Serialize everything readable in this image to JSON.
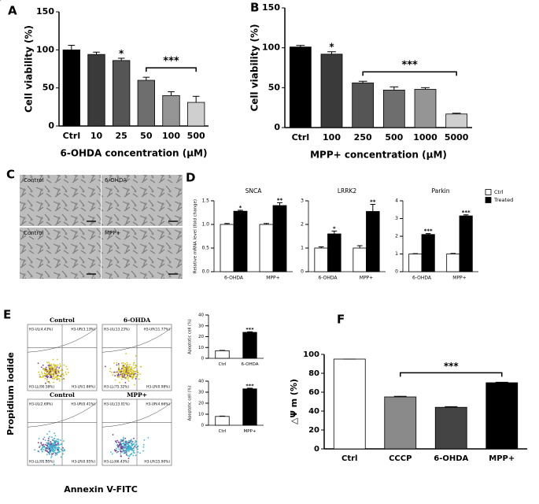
{
  "panel_labels": [
    "A",
    "B",
    "C",
    "D",
    "E",
    "F"
  ],
  "chart_data": [
    {
      "type": "bar",
      "categories": [
        "Ctrl",
        "10",
        "25",
        "50",
        "100",
        "500"
      ],
      "values": [
        100,
        94,
        86,
        60,
        40,
        31
      ],
      "errors": [
        6,
        3,
        3,
        4,
        5,
        8
      ],
      "colors": [
        "#000000",
        "#3a3a3a",
        "#555555",
        "#6e6e6e",
        "#959595",
        "#cfcfcf"
      ],
      "sig": [
        null,
        null,
        "*",
        null,
        null,
        null
      ],
      "bracket": {
        "text": "***",
        "from": "50",
        "to": "500"
      },
      "xlabel": "6-OHDA concentration (μM)",
      "ylabel": "Cell viability (%)",
      "ylim": [
        0,
        150
      ],
      "yticks": [
        0,
        50,
        100,
        150
      ]
    },
    {
      "type": "bar",
      "categories": [
        "Ctrl",
        "100",
        "250",
        "500",
        "1000",
        "5000"
      ],
      "values": [
        101,
        92,
        56,
        47,
        48,
        17
      ],
      "errors": [
        2,
        3,
        2,
        4,
        2,
        1
      ],
      "colors": [
        "#000000",
        "#3a3a3a",
        "#555555",
        "#6e6e6e",
        "#959595",
        "#cfcfcf"
      ],
      "sig": [
        null,
        "*",
        null,
        null,
        null,
        null
      ],
      "bracket": {
        "text": "***",
        "from": "250",
        "to": "5000"
      },
      "xlabel": "MPP+ concentration (μM)",
      "ylabel": "Cell viability (%)",
      "ylim": [
        0,
        150
      ],
      "yticks": [
        0,
        50,
        100,
        150
      ]
    },
    {
      "type": "bar",
      "title": "SNCA",
      "ylabel": "Relative mRNA level (fold change)",
      "categories": [
        "6-OHDA",
        "MPP+"
      ],
      "series": [
        {
          "name": "Ctrl",
          "color": "#ffffff",
          "values": [
            1.0,
            1.0
          ],
          "errors": [
            0.02,
            0.02
          ],
          "sig": [
            null,
            null
          ]
        },
        {
          "name": "Treated",
          "color": "#000000",
          "values": [
            1.28,
            1.4
          ],
          "errors": [
            0.02,
            0.06
          ],
          "sig": [
            "*",
            "**"
          ]
        }
      ],
      "ylim": [
        0,
        1.5
      ],
      "yticks": [
        {
          "value": 0,
          "label": "0.0"
        },
        {
          "value": 0.5,
          "label": "0.5"
        },
        {
          "value": 1,
          "label": "1.0"
        },
        {
          "value": 1.5,
          "label": "1.5"
        }
      ]
    },
    {
      "type": "bar",
      "title": "LRRK2",
      "categories": [
        "6-OHDA",
        "MPP+"
      ],
      "series": [
        {
          "name": "Ctrl",
          "color": "#ffffff",
          "values": [
            1.0,
            1.0
          ],
          "errors": [
            0.05,
            0.1
          ],
          "sig": [
            null,
            null
          ]
        },
        {
          "name": "Treated",
          "color": "#000000",
          "values": [
            1.6,
            2.55
          ],
          "errors": [
            0.12,
            0.3
          ],
          "sig": [
            "*",
            "**"
          ]
        }
      ],
      "ylim": [
        0,
        3
      ],
      "yticks": [
        0,
        1,
        2,
        3
      ]
    },
    {
      "type": "bar",
      "title": "Parkin",
      "legend": true,
      "categories": [
        "6-OHDA",
        "MPP+"
      ],
      "series": [
        {
          "name": "Ctrl",
          "color": "#ffffff",
          "values": [
            1.0,
            1.0
          ],
          "errors": [
            0.02,
            0.03
          ],
          "sig": [
            null,
            null
          ]
        },
        {
          "name": "Treated",
          "color": "#000000",
          "values": [
            2.1,
            3.15
          ],
          "errors": [
            0.05,
            0.06
          ],
          "sig": [
            "***",
            "***"
          ]
        }
      ],
      "ylim": [
        0,
        4
      ],
      "yticks": [
        0,
        1,
        2,
        3,
        4
      ]
    },
    {
      "type": "bar",
      "ylabel": "Apoptotic cell (%)",
      "categories": [
        "Ctrl",
        "6-OHDA"
      ],
      "values": [
        7,
        24
      ],
      "errors": [
        0.3,
        0.5
      ],
      "colors": [
        "#ffffff",
        "#000000"
      ],
      "sig": [
        null,
        "***"
      ],
      "ylim": [
        0,
        40
      ],
      "yticks": [
        0,
        10,
        20,
        30,
        40
      ]
    },
    {
      "type": "bar",
      "ylabel": "Apoptotic cell (%)",
      "categories": [
        "Ctrl",
        "MPP+"
      ],
      "values": [
        8,
        33
      ],
      "errors": [
        0.3,
        0.6
      ],
      "colors": [
        "#ffffff",
        "#000000"
      ],
      "sig": [
        null,
        "***"
      ],
      "ylim": [
        0,
        40
      ],
      "yticks": [
        0,
        10,
        20,
        30,
        40
      ]
    },
    {
      "type": "bar",
      "categories": [
        "Ctrl",
        "CCCP",
        "6-OHDA",
        "MPP+"
      ],
      "values": [
        95,
        55,
        44,
        70
      ],
      "errors": [
        0,
        0.6,
        0.7,
        0.5
      ],
      "colors": [
        "#ffffff",
        "#8a8a8a",
        "#444444",
        "#000000"
      ],
      "bracket": {
        "text": "***",
        "from": "CCCP",
        "to": "MPP+"
      },
      "ylabel": "△Ψ m (%)",
      "ylim": [
        0,
        100
      ],
      "yticks": [
        0,
        20,
        40,
        60,
        80,
        100
      ]
    }
  ],
  "micrographs": {
    "labels": [
      "Control",
      "6-OHDA",
      "Control",
      "MPP+"
    ]
  },
  "flow": {
    "ylabel": "Propidium iodide",
    "xlabel": "Annexin V-FITC",
    "plots": [
      {
        "title": "Control",
        "quadrants": [
          "H3-UL(4.43%)",
          "H3-UR(3.13%)",
          "H3-LL(90.58%)",
          "H3-LR(1.86%)"
        ]
      },
      {
        "title": "6-OHDA",
        "quadrants": [
          "H3-UL(13.23%)",
          "H3-UR(11.77%)",
          "H3-LL(75.32%)",
          "H3-LR(0.98%)"
        ]
      },
      {
        "title": "Control",
        "quadrants": [
          "H3-UL(2.69%)",
          "H3-UR(0.41%)",
          "H3-LL(95.95%)",
          "H3-LR(0.95%)"
        ]
      },
      {
        "title": "MPP+",
        "quadrants": [
          "H3-UL(13.01%)",
          "H3-UR(4.66%)",
          "H3-LL(66.43%)",
          "H3-LR(15.90%)"
        ]
      }
    ]
  }
}
